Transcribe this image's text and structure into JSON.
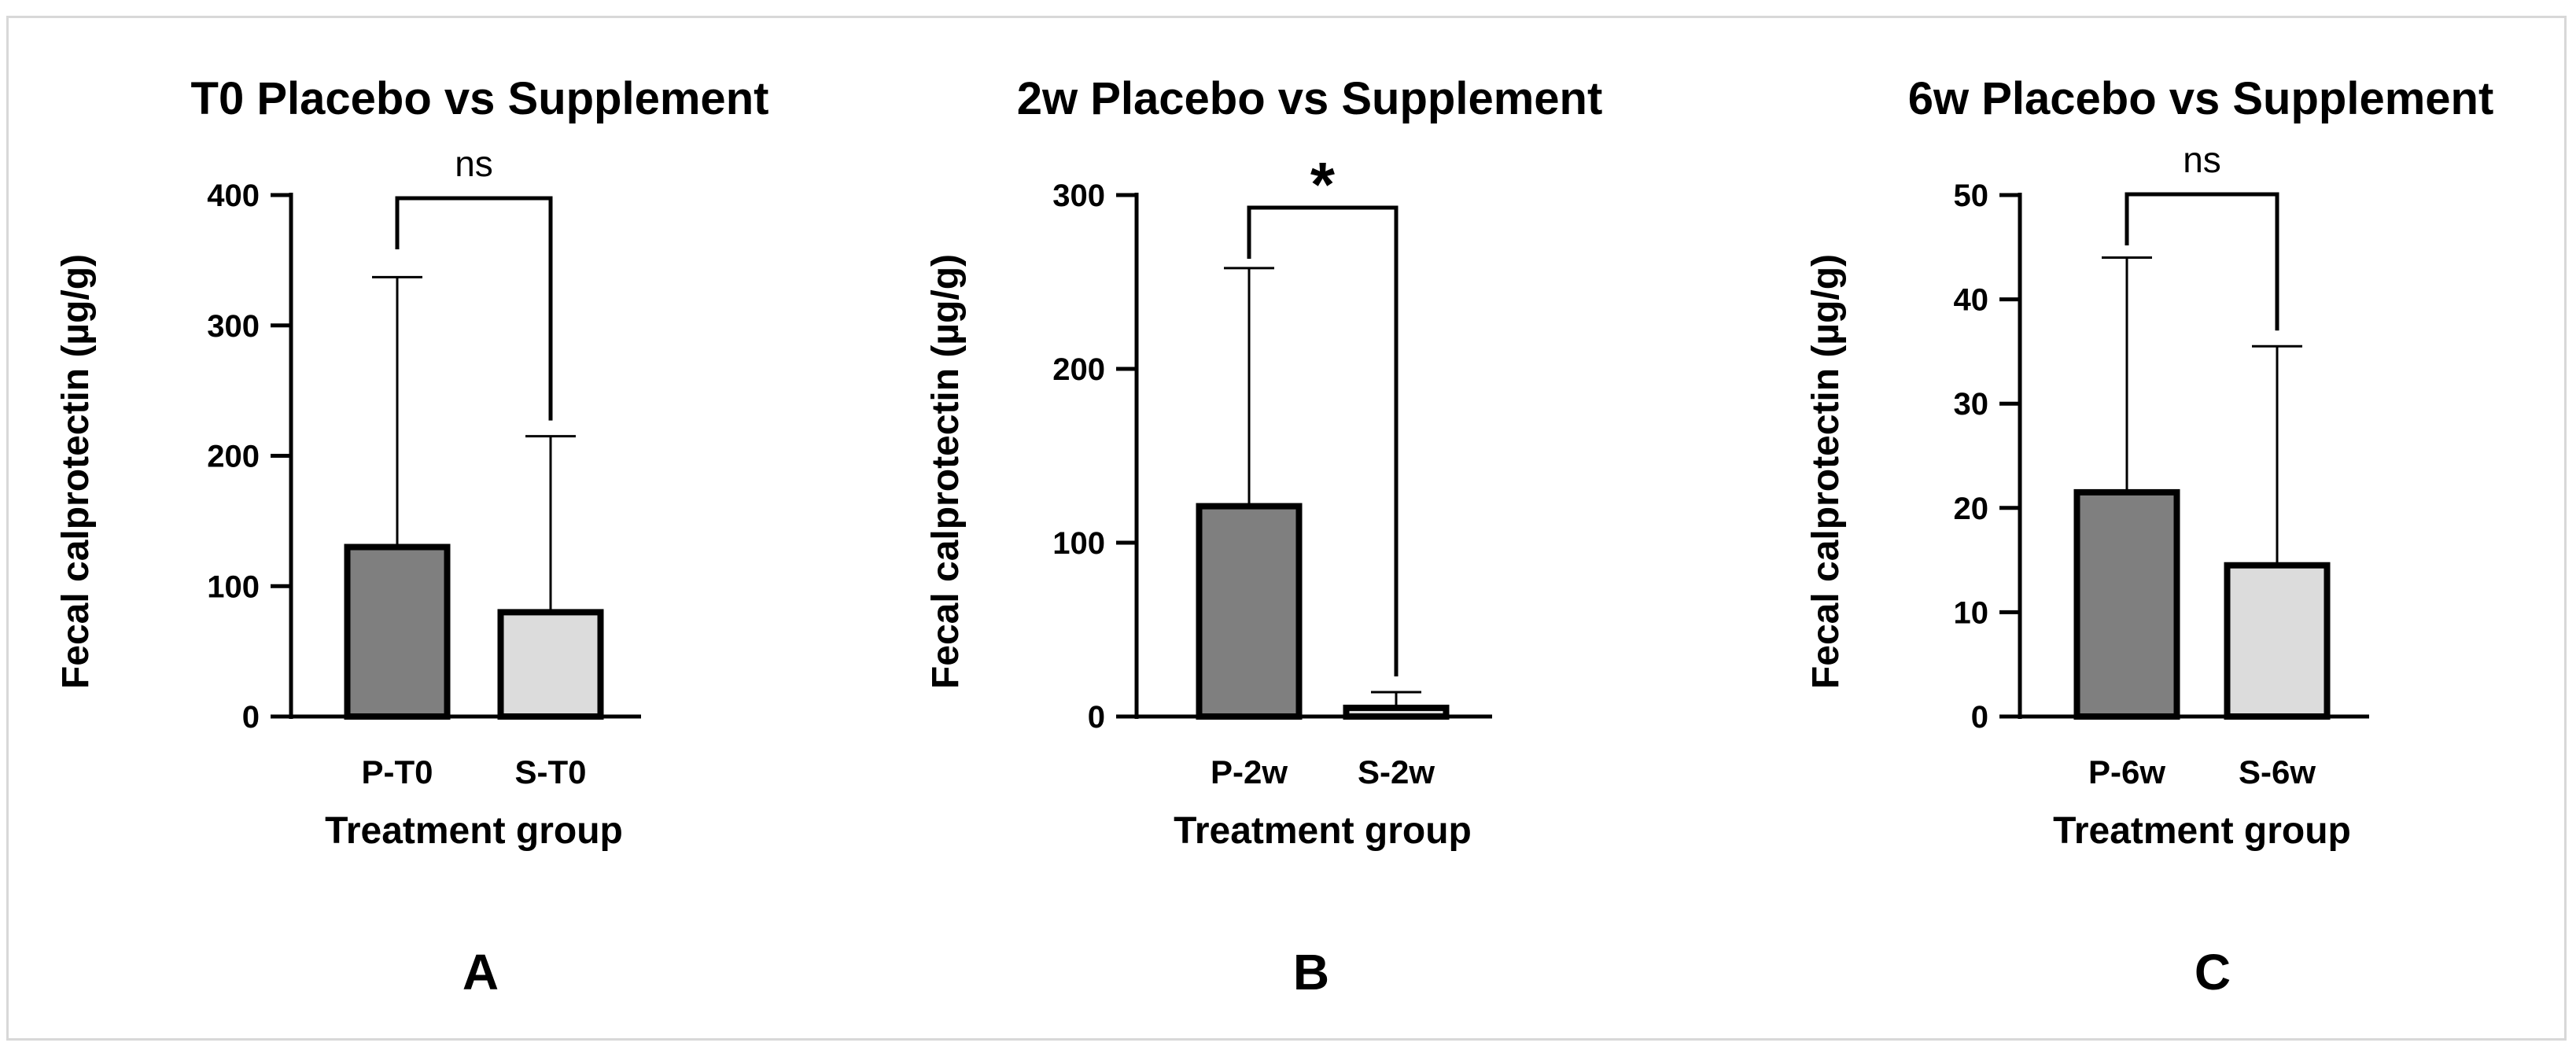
{
  "chart_data": [
    {
      "type": "bar",
      "panel": "A",
      "title": "T0 Placebo vs Supplement",
      "xlabel": "Treatment group",
      "ylabel": "Fecal calprotectin (µg/g)",
      "ylim": [
        0,
        400
      ],
      "yticks": [
        0,
        100,
        200,
        300,
        400
      ],
      "categories": [
        "P-T0",
        "S-T0"
      ],
      "values": [
        130,
        80
      ],
      "error_upper": [
        337,
        215
      ],
      "bar_colors": [
        "#7f7f7f",
        "#dcdcdc"
      ],
      "significance": "ns"
    },
    {
      "type": "bar",
      "panel": "B",
      "title": "2w Placebo vs Supplement",
      "xlabel": "Treatment group",
      "ylabel": "Fecal calprotectin (µg/g)",
      "ylim": [
        0,
        300
      ],
      "yticks": [
        0,
        100,
        200,
        300
      ],
      "categories": [
        "P-2w",
        "S-2w"
      ],
      "values": [
        121,
        5
      ],
      "error_upper": [
        258,
        14
      ],
      "bar_colors": [
        "#7f7f7f",
        "#dcdcdc"
      ],
      "significance": "*"
    },
    {
      "type": "bar",
      "panel": "C",
      "title": "6w Placebo vs Supplement",
      "xlabel": "Treatment group",
      "ylabel": "Fecal calprotectin (µg/g)",
      "ylim": [
        0,
        50
      ],
      "yticks": [
        0,
        10,
        20,
        30,
        40,
        50
      ],
      "categories": [
        "P-6w",
        "S-6w"
      ],
      "values": [
        21.5,
        14.5
      ],
      "error_upper": [
        44,
        35.5
      ],
      "bar_colors": [
        "#7f7f7f",
        "#dcdcdc"
      ],
      "significance": "ns"
    }
  ]
}
